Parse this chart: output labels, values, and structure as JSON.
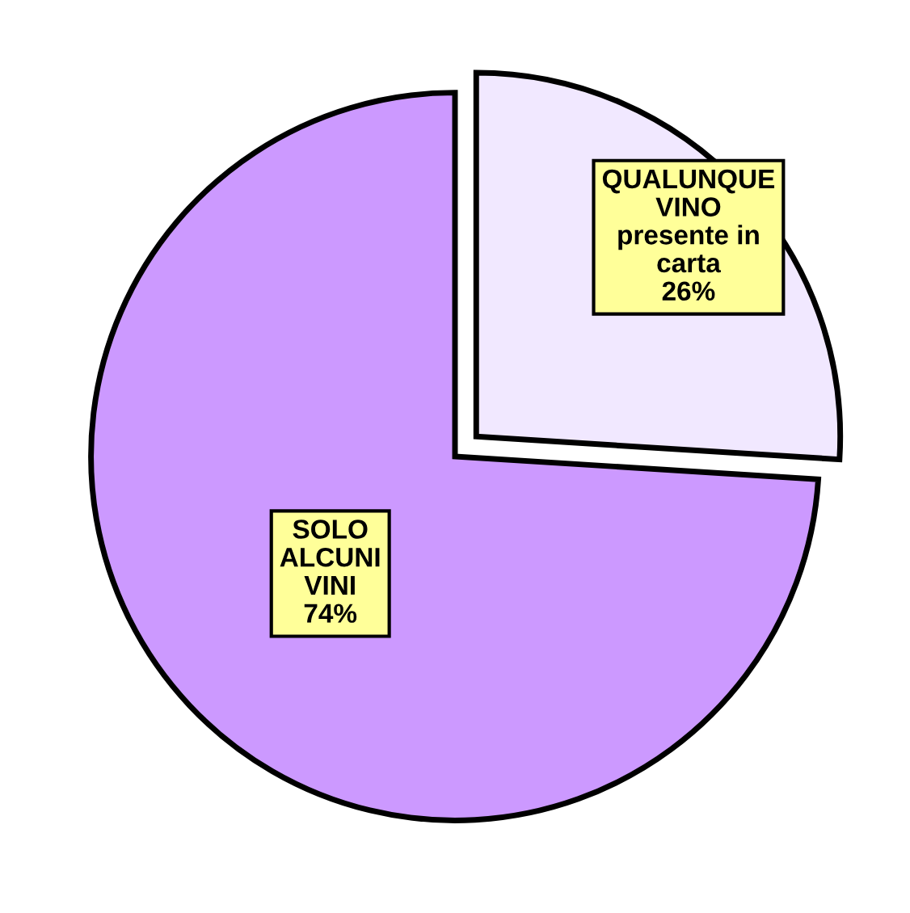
{
  "chart_data": {
    "type": "pie",
    "categories": [
      "QUALUNQUE\nVINO\npresente in\ncarta",
      "SOLO\nALCUNI\nVINI"
    ],
    "values": [
      26,
      74
    ],
    "value_labels": [
      "26%",
      "74%"
    ],
    "colors": [
      "#f1e8ff",
      "#cc99ff"
    ],
    "legend": false
  }
}
